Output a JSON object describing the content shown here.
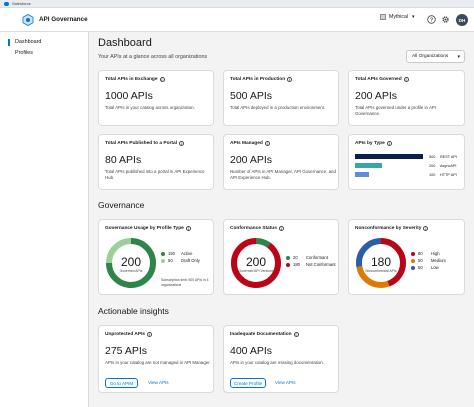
{
  "browser_tab": {
    "label": "Salesforce"
  },
  "header": {
    "app_title": "API Governance",
    "org_name": "Mythical",
    "avatar_initials": "DH"
  },
  "sidebar": {
    "items": [
      {
        "label": "Dashboard",
        "active": true
      },
      {
        "label": "Profiles",
        "active": false
      }
    ]
  },
  "page": {
    "title": "Dashboard",
    "subtitle": "Your APIs at a glance across all organizations",
    "org_filter": "All Organizations"
  },
  "summary_cards": [
    {
      "title": "Total APIs in Exchange",
      "value": "1000 APIs",
      "desc": "Total APIs in your catalog across organization."
    },
    {
      "title": "Total APIs in Production",
      "value": "500 APIs",
      "desc": "Total APIs deployed in a production environment."
    },
    {
      "title": "Total APIs Governed",
      "value": "200 APIs",
      "desc": "Total APIs governed under a profile in API Governance."
    },
    {
      "title": "Total APIs Published to a Portal",
      "value": "80 APIs",
      "desc": "Total APIs published into a portal in API Experience Hub."
    },
    {
      "title": "APIs Managed",
      "value": "200 APIs",
      "desc": "Number of APIs in API Manager, API Governance, and API Experience Hub."
    }
  ],
  "apis_by_type": {
    "title": "APIs by Type",
    "bars": [
      {
        "count": "500",
        "label": "REST API",
        "value": 500,
        "color": "#0b1f4b"
      },
      {
        "count": "200",
        "label": "AsyncAPI",
        "value": 200,
        "color": "#3aa6a6"
      },
      {
        "count": "100",
        "label": "HTTP API",
        "value": 100,
        "color": "#5a8de0"
      }
    ],
    "max": 500
  },
  "governance": {
    "section_title": "Governance",
    "usage": {
      "title": "Governance Usage by Profile Type",
      "center_value": "200",
      "center_label": "Governed APIs",
      "legend": [
        {
          "value": "150",
          "label": "Active",
          "color": "#2e844a"
        },
        {
          "value": "50",
          "label": "Draft Only",
          "color": "#9ad19a"
        }
      ],
      "note": "Subscription limit: 500 APIs in 4 organizations"
    },
    "conformance": {
      "title": "Conformance Status",
      "center_value": "200",
      "center_label": "Governed API Versions",
      "legend": [
        {
          "value": "20",
          "label": "Conformant",
          "color": "#2e844a"
        },
        {
          "value": "180",
          "label": "Not Conformant",
          "color": "#ba0517"
        }
      ]
    },
    "severity": {
      "title": "Nonconformance by Severity",
      "center_value": "180",
      "center_label": "Nonconformant APIs",
      "legend": [
        {
          "value": "80",
          "label": "High",
          "color": "#ba0517"
        },
        {
          "value": "50",
          "label": "Medium",
          "color": "#dd7a01"
        },
        {
          "value": "50",
          "label": "Low",
          "color": "#2e5ca8"
        }
      ]
    }
  },
  "insights": {
    "section_title": "Actionable insights",
    "unprotected": {
      "title": "Unprotected APIs",
      "value": "275 APIs",
      "desc": "APIs in your catalog are not managed in API Manager.",
      "button": "Go to APIM",
      "link": "View APIs"
    },
    "documentation": {
      "title": "Inadequate Documentation",
      "value": "400 APIs",
      "desc": "APIs in your catalog are missing documentation.",
      "button": "Create Profile",
      "link": "View APIs"
    }
  }
}
